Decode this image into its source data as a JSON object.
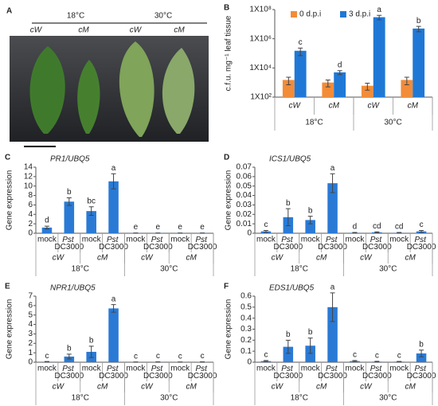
{
  "panel_a": {
    "panel": "A",
    "temps": [
      "18°C",
      "30°C"
    ],
    "genotypes": [
      "cW",
      "cM",
      "cW",
      "cM"
    ]
  },
  "chart_data": [
    {
      "panel": "B",
      "type": "bar",
      "log_scale": true,
      "ylabel": "c.f.u. mg⁻¹ leaf tissue",
      "categories": [
        "cW",
        "cM",
        "cW",
        "cM"
      ],
      "groups": [
        "18°C",
        "30°C"
      ],
      "series": [
        {
          "name": "0 d.p.i",
          "color": "#f28c38",
          "values": [
            1500,
            1000,
            600,
            1500
          ],
          "errors": [
            800,
            500,
            300,
            800
          ]
        },
        {
          "name": "3 d.p.i",
          "color": "#1f78d6",
          "values": [
            150000,
            5000,
            30000000,
            5000000
          ],
          "errors": [
            80000,
            1500,
            10000000,
            2000000
          ],
          "annotations": [
            "c",
            "d",
            "a",
            "b"
          ]
        }
      ],
      "ylim": [
        100,
        100000000
      ],
      "yticks": [
        {
          "value": 100,
          "label": "1X10²"
        },
        {
          "value": 10000,
          "label": "1X10⁴"
        },
        {
          "value": 1000000,
          "label": "1X10⁶"
        },
        {
          "value": 100000000,
          "label": "1X10⁸"
        }
      ],
      "grid": false,
      "legend": "top"
    },
    {
      "panel": "C",
      "type": "bar",
      "title": "PR1/UBQ5",
      "ylabel": "Gene expression",
      "categories": [
        "mock",
        "Pst DC3000",
        "mock",
        "Pst DC3000",
        "mock",
        "Pst DC3000",
        "mock",
        "Pst DC3000"
      ],
      "groups": [
        "cW",
        "cM",
        "cW",
        "cM"
      ],
      "supergroups": [
        "18°C",
        "30°C"
      ],
      "series": [
        {
          "color": "#2a7ad5",
          "values": [
            1.2,
            6.7,
            4.7,
            11,
            0.05,
            0.05,
            0.05,
            0.05
          ],
          "errors": [
            0.3,
            0.8,
            0.9,
            1.6,
            0.02,
            0.02,
            0.02,
            0.02
          ],
          "annotations": [
            "d",
            "b",
            "bc",
            "a",
            "e",
            "e",
            "e",
            "e"
          ]
        }
      ],
      "ylim": [
        0,
        14
      ],
      "yticks": [
        0,
        2,
        4,
        6,
        8,
        10,
        12,
        14
      ],
      "grid": false
    },
    {
      "panel": "D",
      "type": "bar",
      "title": "ICS1/UBQ5",
      "ylabel": "Gene expression",
      "categories": [
        "mock",
        "Pst DC3000",
        "mock",
        "Pst DC3000",
        "mock",
        "Pst DC3000",
        "mock",
        "Pst DC3000"
      ],
      "groups": [
        "cW",
        "cM",
        "cW",
        "cM"
      ],
      "supergroups": [
        "18°C",
        "30°C"
      ],
      "series": [
        {
          "color": "#2a7ad5",
          "values": [
            0.002,
            0.017,
            0.014,
            0.053,
            0.0005,
            0.001,
            0.0005,
            0.002
          ],
          "errors": [
            0.001,
            0.009,
            0.004,
            0.01,
            0.0003,
            0.0005,
            0.0003,
            0.001
          ],
          "annotations": [
            "c",
            "b",
            "b",
            "a",
            "d",
            "cd",
            "cd",
            "c"
          ]
        }
      ],
      "ylim": [
        0,
        0.07
      ],
      "yticks": [
        0,
        0.01,
        0.02,
        0.03,
        0.04,
        0.05,
        0.06,
        0.07
      ],
      "grid": false
    },
    {
      "panel": "E",
      "type": "bar",
      "title": "NPR1/UBQ5",
      "ylabel": "Gene expression",
      "categories": [
        "mock",
        "Pst DC3000",
        "mock",
        "Pst DC3000",
        "mock",
        "Pst DC3000",
        "mock",
        "Pst DC3000"
      ],
      "groups": [
        "cW",
        "cM",
        "cW",
        "cM"
      ],
      "supergroups": [
        "18°C",
        "30°C"
      ],
      "series": [
        {
          "color": "#2a7ad5",
          "values": [
            0.05,
            0.6,
            1.1,
            5.7,
            0.02,
            0.03,
            0.02,
            0.03
          ],
          "errors": [
            0.02,
            0.25,
            0.6,
            0.4,
            0.01,
            0.01,
            0.01,
            0.01
          ],
          "annotations": [
            "c",
            "b",
            "b",
            "a",
            "c",
            "c",
            "c",
            "c"
          ]
        }
      ],
      "ylim": [
        0,
        7
      ],
      "yticks": [
        0,
        1,
        2,
        3,
        4,
        5,
        6,
        7
      ],
      "grid": false
    },
    {
      "panel": "F",
      "type": "bar",
      "title": "EDS1/UBQ5",
      "ylabel": "Gene expression",
      "categories": [
        "mock",
        "Pst DC3000",
        "mock",
        "Pst DC3000",
        "mock",
        "Pst DC3000",
        "mock",
        "Pst DC3000"
      ],
      "groups": [
        "cW",
        "cM",
        "cW",
        "cM"
      ],
      "supergroups": [
        "18°C",
        "30°C"
      ],
      "series": [
        {
          "color": "#2a7ad5",
          "values": [
            0.01,
            0.14,
            0.15,
            0.5,
            0.01,
            0.005,
            0.005,
            0.08
          ],
          "errors": [
            0.005,
            0.06,
            0.07,
            0.13,
            0.005,
            0.003,
            0.002,
            0.03
          ],
          "annotations": [
            "c",
            "b",
            "b",
            "a",
            "c",
            "c",
            "c",
            "b"
          ]
        }
      ],
      "ylim": [
        0,
        0.6
      ],
      "yticks": [
        0,
        0.1,
        0.2,
        0.3,
        0.4,
        0.5,
        0.6
      ],
      "grid": false
    }
  ]
}
